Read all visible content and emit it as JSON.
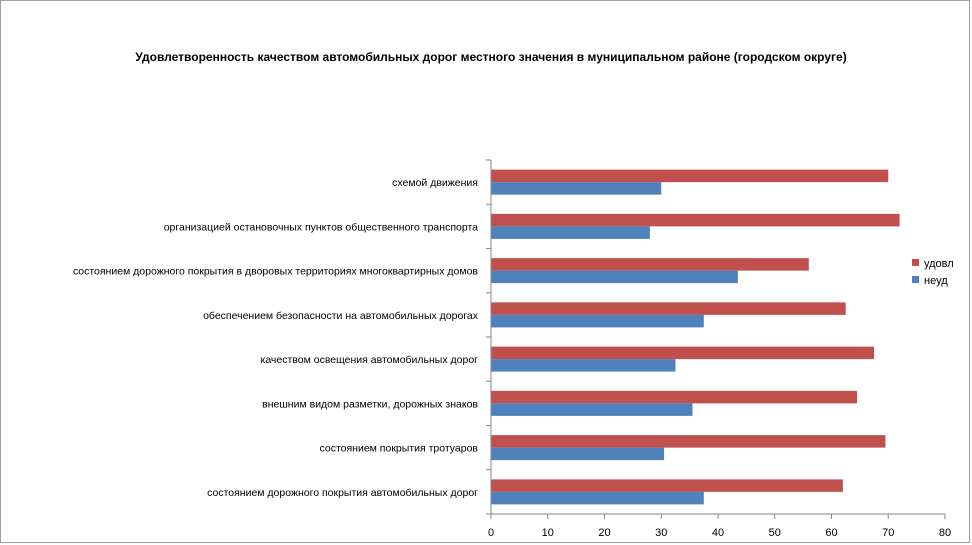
{
  "chart_data": {
    "type": "bar",
    "orientation": "horizontal",
    "title": "Удовлетворенность качеством автомобильных дорог местного значения в муниципальном районе (городском округе)",
    "categories": [
      "схемой движения",
      "организацией остановочных пунктов общественного транспорта",
      "состоянием дорожного покрытия в дворовых территориях многоквартирных домов",
      "обеспечением безопасности на автомобильных дорогах",
      "качеством освещения автомобильных дорог",
      "внешним видом разметки, дорожных знаков",
      "состоянием покрытия тротуаров",
      "состоянием дорожного покрытия автомобильных дорог"
    ],
    "series": [
      {
        "name": "удовл",
        "color": "#c0504d",
        "values": [
          70,
          72,
          56,
          62.5,
          67.5,
          64.5,
          69.5,
          62
        ]
      },
      {
        "name": "неуд",
        "color": "#4f81bd",
        "values": [
          30,
          28,
          43.5,
          37.5,
          32.5,
          35.5,
          30.5,
          37.5
        ]
      }
    ],
    "xlim": [
      0,
      80
    ],
    "xticks": [
      "0",
      "10",
      "20",
      "30",
      "40",
      "50",
      "60",
      "70",
      "80"
    ],
    "grid": false,
    "legend": "right"
  }
}
